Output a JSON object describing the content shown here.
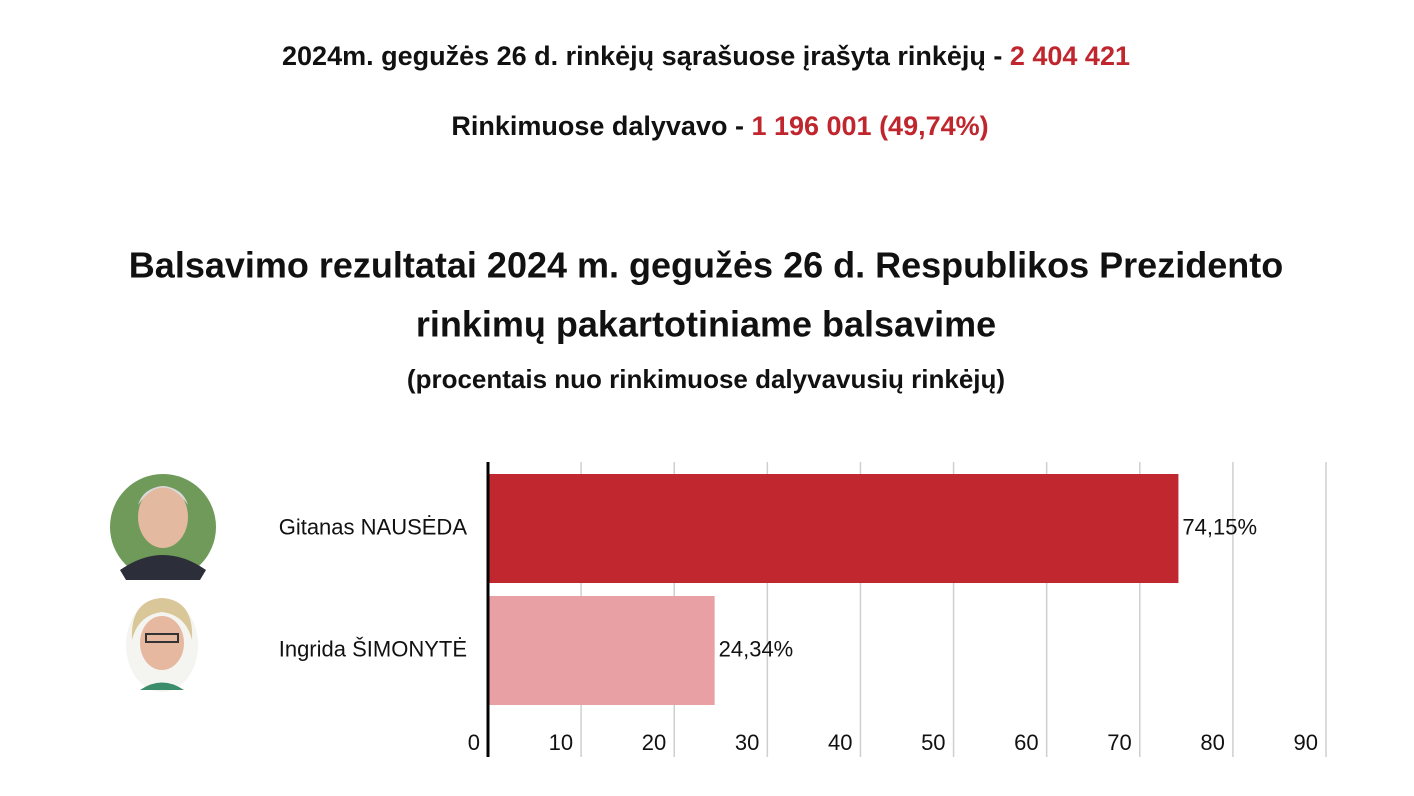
{
  "header": {
    "line1": {
      "label": "2024m. gegužės 26 d. rinkėjų sąrašuose įrašyta rinkėjų - ",
      "value": "2 404 421"
    },
    "line2": {
      "label": "Rinkimuose dalyvavo - ",
      "value": "1 196 001 (49,74%)"
    }
  },
  "chart_data": {
    "type": "bar",
    "horizontal": true,
    "title": [
      "Balsavimo rezultatai 2024 m. gegužės 26 d. Respublikos Prezidento",
      "rinkimų pakartotiniame balsavime"
    ],
    "subtitle": "(procentais nuo rinkimuose dalyvavusių rinkėjų)",
    "categories": [
      "Gitanas NAUSĖDA",
      "Ingrida ŠIMONYTĖ"
    ],
    "values": [
      74.15,
      24.34
    ],
    "value_labels": [
      "74,15%",
      "24,34%"
    ],
    "colors": [
      "#c1272f",
      "#e8a0a4"
    ],
    "xlim": [
      0,
      90
    ],
    "xticks": [
      0,
      10,
      20,
      30,
      40,
      50,
      60,
      70,
      80,
      90
    ],
    "grid": true
  }
}
